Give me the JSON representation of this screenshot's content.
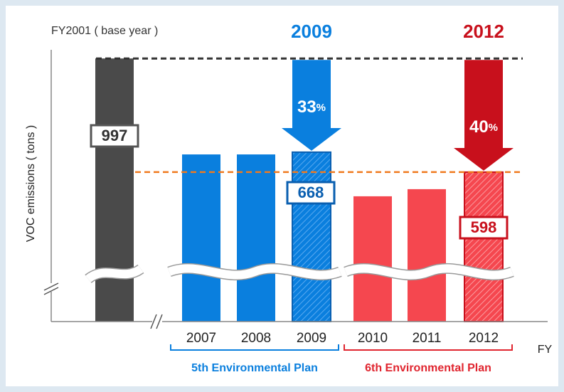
{
  "chart_data": {
    "type": "bar",
    "base_label": "FY2001 ( base year )",
    "ylabel": "VOC emissions ( tons )",
    "xlabel": "FY",
    "categories": [
      null,
      "2007",
      "2008",
      "2009",
      "2010",
      "2011",
      "2012"
    ],
    "values": [
      997,
      660,
      660,
      668,
      513,
      538,
      598
    ],
    "colors": [
      "#4a4a4a",
      "#0a7fde",
      "#0a7fde",
      "#0a7fde",
      "#f5474f",
      "#f5474f",
      "#f5474f"
    ],
    "ylim": [
      73,
      1010
    ],
    "targets": [
      {
        "year": "2009",
        "reduction": "33",
        "unit": "%",
        "color": "#0a7fde"
      },
      {
        "year": "2012",
        "reduction": "40",
        "unit": "%",
        "color": "#c8101c"
      }
    ],
    "plans": [
      {
        "label": "5th Environmental Plan",
        "color": "#0a7fde"
      },
      {
        "label": "6th Environmental Plan",
        "color": "#e0252f"
      }
    ]
  }
}
